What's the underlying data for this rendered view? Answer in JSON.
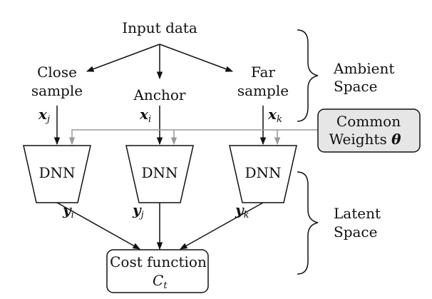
{
  "input": {
    "label": "Input data"
  },
  "samples": {
    "close": {
      "line1": "Close",
      "line2": "sample",
      "var": "x",
      "sub": "j"
    },
    "anchor": {
      "line1": "Anchor",
      "var": "x",
      "sub": "i"
    },
    "far": {
      "line1": "Far",
      "line2": "sample",
      "var": "x",
      "sub": "k"
    }
  },
  "dnn": {
    "label": "DNN"
  },
  "outputs": {
    "left": {
      "var": "y",
      "sub": "i"
    },
    "mid": {
      "var": "y",
      "sub": "j"
    },
    "right": {
      "var": "y",
      "sub": "k"
    }
  },
  "cost": {
    "line1": "Cost function",
    "var": "C",
    "sub": "t"
  },
  "weights": {
    "line1": "Common",
    "line2": "Weights",
    "symbol": "θ"
  },
  "ambient": {
    "line1": "Ambient",
    "line2": "Space"
  },
  "latent": {
    "line1": "Latent",
    "line2": "Space"
  },
  "colors": {
    "stroke": "#111111",
    "weights_line": "#999999",
    "weights_fill": "#e6e6e6"
  }
}
